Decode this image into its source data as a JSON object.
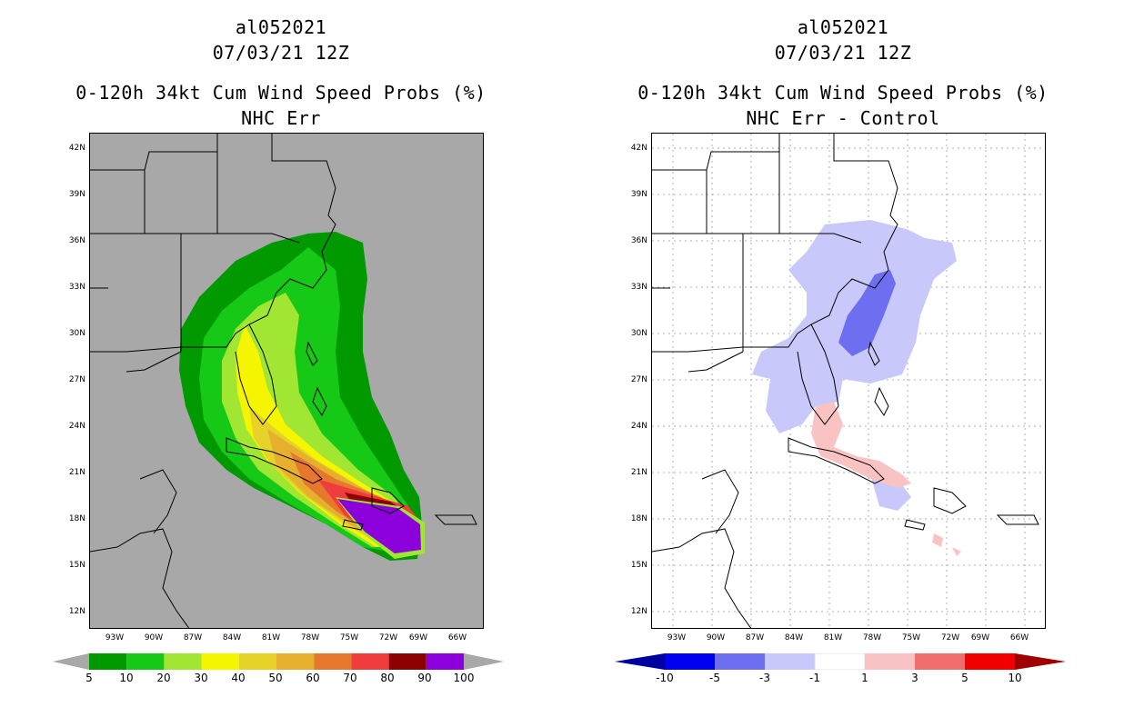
{
  "left": {
    "storm_id": "al052021",
    "datetime": "07/03/21 12Z",
    "product": "0-120h 34kt Cum Wind Speed Probs (%)",
    "subtitle": "NHC Err",
    "colorbar": {
      "labels": [
        "5",
        "10",
        "20",
        "30",
        "40",
        "50",
        "60",
        "70",
        "80",
        "90",
        "100"
      ],
      "colors": [
        "#009a00",
        "#16c916",
        "#a0e632",
        "#f5f500",
        "#e6d228",
        "#e6af2d",
        "#e6782d",
        "#f03c3c",
        "#8c0000",
        "#8c00dc"
      ]
    }
  },
  "right": {
    "storm_id": "al052021",
    "datetime": "07/03/21 12Z",
    "product": "0-120h 34kt Cum Wind Speed Probs (%)",
    "subtitle": "NHC Err - Control",
    "colorbar": {
      "labels": [
        "-10",
        "-5",
        "-3",
        "-1",
        "1",
        "3",
        "5",
        "10"
      ],
      "colors": [
        "#0000a0",
        "#0000f0",
        "#6e6ef0",
        "#c8c8fa",
        "#ffffff",
        "#fac3c3",
        "#f06e6e",
        "#f00000",
        "#a00000"
      ]
    }
  },
  "axes": {
    "lat_labels": [
      "42N",
      "39N",
      "36N",
      "33N",
      "30N",
      "27N",
      "24N",
      "21N",
      "18N",
      "15N",
      "12N"
    ],
    "lon_labels": [
      "93W",
      "90W",
      "87W",
      "84W",
      "81W",
      "78W",
      "75W",
      "72W",
      "69W",
      "66W"
    ]
  }
}
